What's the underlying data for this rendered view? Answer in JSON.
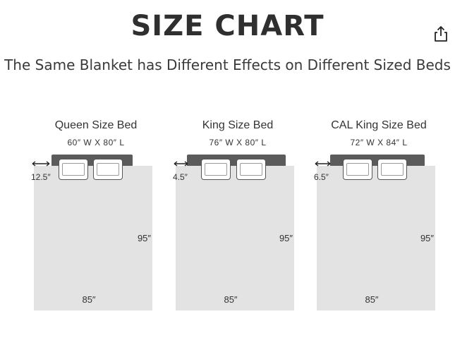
{
  "header": {
    "title": "SIZE CHART",
    "subtitle": "The Same Blanket has Different Effects on Different Sized Beds"
  },
  "icons": {
    "share": "share-icon",
    "overhang_arrow": "double-arrow-icon"
  },
  "beds": [
    {
      "name": "Queen Size Bed",
      "dims": "60″ W X 80″ L",
      "overhang": "12.5″",
      "blanket_length": "95″",
      "blanket_width": "85″"
    },
    {
      "name": "King Size Bed",
      "dims": "76″ W X 80″ L",
      "overhang": "4.5″",
      "blanket_length": "95″",
      "blanket_width": "85″"
    },
    {
      "name": "CAL King Size Bed",
      "dims": "72″ W X 84″ L",
      "overhang": "6.5″",
      "blanket_length": "95″",
      "blanket_width": "85″"
    }
  ],
  "colors": {
    "headboard": "#5b5b5b",
    "blanket": "#e3e3e3",
    "pillow": "#ffffff"
  }
}
